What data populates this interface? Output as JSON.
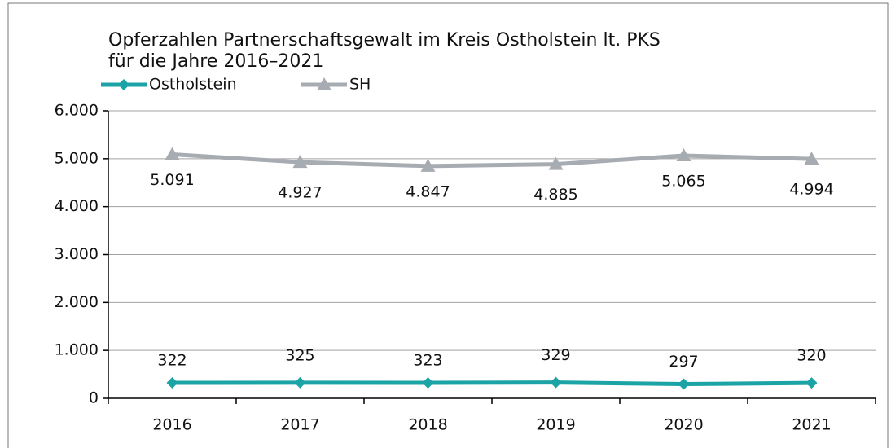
{
  "chart_data": {
    "type": "line",
    "title": [
      "Opferzahlen Partnerschaftsgewalt im Kreis Ostholstein lt. PKS",
      "für die Jahre 2016–2021"
    ],
    "categories": [
      "2016",
      "2017",
      "2018",
      "2019",
      "2020",
      "2021"
    ],
    "series": [
      {
        "name": "Ostholstein",
        "color": "#1ba3a6",
        "marker": "diamond",
        "values": [
          322,
          325,
          323,
          329,
          297,
          320
        ]
      },
      {
        "name": "SH",
        "color": "#a7acb2",
        "marker": "triangle",
        "values": [
          5091,
          4927,
          4847,
          4885,
          5065,
          4994
        ],
        "value_labels": [
          "5.091",
          "4.927",
          "4.847",
          "4.885",
          "5.065",
          "4.994"
        ]
      }
    ],
    "ylim": [
      0,
      6000
    ],
    "yticks": [
      0,
      {
        "value": 1000,
        "label": "1.000"
      },
      {
        "value": 2000,
        "label": "2.000"
      },
      {
        "value": 3000,
        "label": "3.000"
      },
      {
        "value": 4000,
        "label": "4.000"
      },
      {
        "value": 5000,
        "label": "5.000"
      },
      {
        "value": 6000,
        "label": "6.000"
      }
    ],
    "grid": true,
    "legend": "top-left"
  }
}
